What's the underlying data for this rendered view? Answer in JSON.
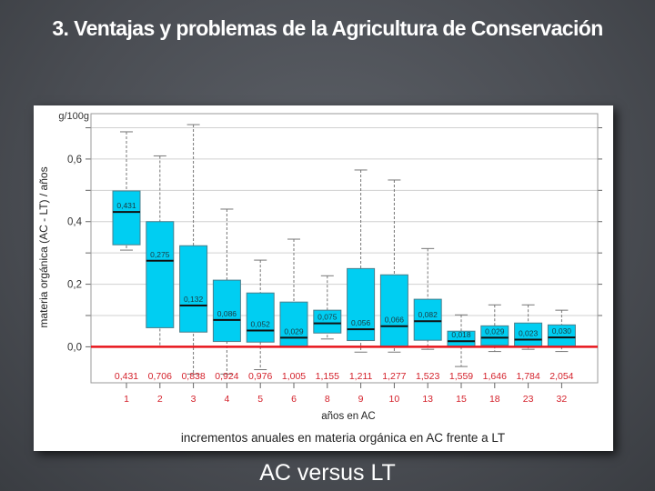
{
  "slide": {
    "title": "3. Ventajas y problemas de la Agricultura de Conservación",
    "subtitle": "AC versus LT"
  },
  "chart_data": {
    "type": "boxplot",
    "title": "incrementos anuales en materia orgánica en AC frente a LT",
    "xlabel": "años en AC",
    "ylabel": "materia orgánica (AC - LT) / años",
    "yunit": "g/100g",
    "ylim": [
      -0.115,
      0.745
    ],
    "yticks": [
      0.0,
      0.2,
      0.4,
      0.6
    ],
    "ytick_labels": [
      "0,0",
      "0,2",
      "0,4",
      "0,6"
    ],
    "grid": true,
    "reference_line": {
      "value": 0.0,
      "color": "#e8141b"
    },
    "box_color": "#00cef2",
    "label_color": "#d4202a",
    "categories": [
      "1",
      "2",
      "3",
      "4",
      "5",
      "6",
      "8",
      "9",
      "10",
      "13",
      "15",
      "18",
      "23",
      "32"
    ],
    "cumulative_labels": [
      "0,431",
      "0,706",
      "0,838",
      "0,924",
      "0,976",
      "1,005",
      "1,155",
      "1,211",
      "1,277",
      "1,523",
      "1,559",
      "1,646",
      "1,784",
      "2,054"
    ],
    "median_labels": [
      "0,431",
      "0,275",
      "0,132",
      "0,086",
      "0,052",
      "0,029",
      "0,075",
      "0,056",
      "0,066",
      "0,082",
      "0,018",
      "0,029",
      "0,023",
      "0,030"
    ],
    "series": [
      {
        "name": "boxes",
        "whisker_high": [
          0.687,
          0.61,
          0.71,
          0.44,
          0.277,
          0.344,
          0.227,
          0.565,
          0.533,
          0.314,
          0.102,
          0.134,
          0.134,
          0.117
        ],
        "q3": [
          0.498,
          0.4,
          0.323,
          0.213,
          0.172,
          0.143,
          0.117,
          0.25,
          0.23,
          0.152,
          0.05,
          0.067,
          0.076,
          0.07
        ],
        "median": [
          0.431,
          0.275,
          0.132,
          0.086,
          0.052,
          0.029,
          0.075,
          0.056,
          0.066,
          0.082,
          0.018,
          0.029,
          0.023,
          0.03
        ],
        "q1": [
          0.326,
          0.061,
          0.047,
          0.017,
          0.015,
          0.0,
          0.044,
          0.02,
          0.0,
          0.021,
          0.0,
          0.005,
          0.0,
          0.0
        ],
        "whisker_low": [
          0.309,
          0.0,
          -0.087,
          -0.087,
          -0.073,
          0.0,
          0.025,
          -0.017,
          -0.017,
          -0.008,
          -0.063,
          -0.015,
          -0.008,
          -0.015
        ]
      }
    ]
  }
}
